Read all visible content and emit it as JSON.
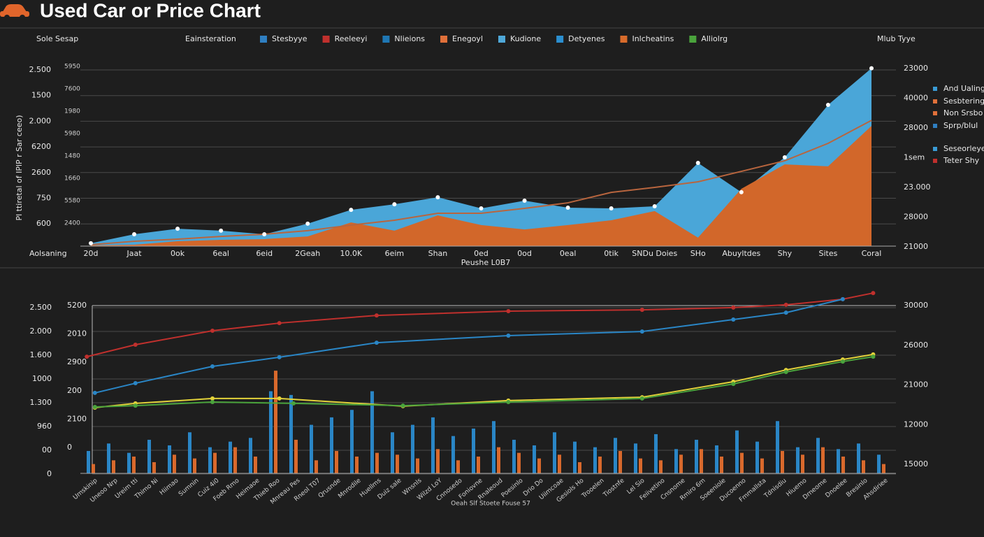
{
  "header": {
    "title": "Used Car or Price Chart"
  },
  "chart_data": [
    {
      "type": "area",
      "top_left_label": "Sole Sesap",
      "legend_title": "Eainsteration",
      "right_title": "Mlub Tyye",
      "y_title": "Pl ttiretal of IPlP r Sar ceeo)",
      "x_title": "Peushe L0B7",
      "x_corner_label": "Aolsaning",
      "legend": [
        {
          "name": "Stesbyye",
          "color": "#2f7fc1"
        },
        {
          "name": "Reeleeyi",
          "color": "#c0302d"
        },
        {
          "name": "Nlieions",
          "color": "#1f77b4"
        },
        {
          "name": "Enegoyl",
          "color": "#e0703a"
        },
        {
          "name": "Kudione",
          "color": "#4fa8d8"
        },
        {
          "name": "Detyenes",
          "color": "#2b8fd0"
        },
        {
          "name": "Inlcheatins",
          "color": "#d86b2b"
        },
        {
          "name": "Alliolrg",
          "color": "#4aa33c"
        }
      ],
      "right_legend": [
        {
          "name": "And Ualing",
          "color": "#3a9bd5"
        },
        {
          "name": "Sesbtering",
          "color": "#e0703a"
        },
        {
          "name": "Non Srsbo",
          "color": "#e0703a"
        },
        {
          "name": "Sprp/blul",
          "color": "#2f7fc1"
        },
        {
          "name": "Seseorleye",
          "color": "#3a9bd5"
        },
        {
          "name": "Teter Shy",
          "color": "#c0302d"
        }
      ],
      "y_labels": [
        "2.500",
        "1500",
        "2.000",
        "6200",
        "2600",
        "750",
        "600"
      ],
      "inner_labels": [
        "5950",
        "7600",
        "1980",
        "5980",
        "1480",
        "1660",
        "5580",
        "2400"
      ],
      "right_labels": [
        "23000",
        "40000",
        "28000",
        "1sem",
        "23.000",
        "28000",
        "21000"
      ],
      "categories": [
        "20d",
        "Jaat",
        "0ok",
        "6eal",
        "6eid",
        "2Geah",
        "10.0K",
        "6eim",
        "Shan",
        "0ed",
        "0od",
        "0eal",
        "0tik",
        "SNDu Doies",
        "SHo",
        "Abuyltdes",
        "Shy",
        "Sites",
        "Coral"
      ],
      "ylim": [
        0,
        100
      ],
      "series": [
        {
          "color": "#4aa6d8",
          "values": [
            1.6,
            6.6,
            9.7,
            8.6,
            6.6,
            12.5,
            20.2,
            23.3,
            27.2,
            21,
            25.3,
            21.4,
            21,
            22.2,
            46.3,
            30,
            49.4,
            78.6,
            99
          ]
        },
        {
          "color": "#d2672a",
          "values": [
            0.4,
            0.8,
            2.7,
            3.5,
            3.9,
            5.4,
            13.2,
            8.6,
            17.1,
            11.7,
            9.3,
            11.7,
            14.4,
            19.5,
            4.7,
            31.9,
            45.5,
            44.4,
            66.9
          ]
        },
        {
          "type": "line",
          "color": "#b8653e",
          "values": [
            0.8,
            2.7,
            3.9,
            5.4,
            6.6,
            8.6,
            11.7,
            14.4,
            18.3,
            18.3,
            21,
            24.1,
            29.9,
            32.7,
            35.8,
            41.6,
            47.5,
            57.2,
            70
          ]
        }
      ]
    },
    {
      "type": "bar",
      "x_title": "Oeah Slf Stoete Fouse 57",
      "y_labels": [
        "2.500",
        "2.000",
        "1.600",
        "1000",
        "1.300",
        "960",
        "00",
        "0"
      ],
      "inner_labels": [
        "5200",
        "2010",
        "2900",
        "200",
        "2100",
        "0"
      ],
      "right_labels": [
        "30000",
        "26000",
        "21000",
        "12000",
        "15000"
      ],
      "categories": [
        "Umskinip",
        "Uneoo Nrp",
        "Ureim tti",
        "Thimo Ni",
        "Hiimao",
        "Sumnin",
        "Cuiz 4i0",
        "Foeb Rmo",
        "Heimaoe",
        "Thieb Roo",
        "Mnreau Pes",
        "Rneol T07",
        "Qrusnde",
        "Mnrodile",
        "Huellms",
        "Duiz sale",
        "Wnsnls",
        "Wilzd LoY",
        "Cnnosedo",
        "Foniovne",
        "Rnaleoud",
        "Poesinlo",
        "Drio Do",
        "Uiimcoae",
        "Gesiols Ho",
        "Trooelen",
        "Tiostnfe",
        "Lel Sio",
        "Feiivetino",
        "Cnsnome",
        "Rmiro 6m",
        "Soeeniole",
        "Ducoenno",
        "Fmmallsta",
        "Tdnisdiu",
        "Hiuemo",
        "Drneome",
        "Dnoelee",
        "Bresinlo",
        "Ahsdiriee"
      ],
      "xlim": [
        -0.5,
        39.5
      ],
      "ylim": [
        0,
        100
      ],
      "series": [
        {
          "color": "#2a86c6",
          "values": [
            12,
            16,
            11,
            18,
            15,
            22,
            14,
            17,
            19,
            44,
            42,
            26,
            30,
            34,
            44,
            22,
            26,
            30,
            20,
            24,
            28,
            18,
            15,
            22,
            17,
            14,
            19,
            16,
            21,
            13,
            18,
            15,
            23,
            17,
            28,
            14,
            19,
            13,
            16,
            10
          ]
        },
        {
          "color": "#d9692c",
          "values": [
            5,
            7,
            9,
            6,
            10,
            8,
            11,
            14,
            9,
            55,
            18,
            7,
            12,
            9,
            11,
            10,
            8,
            13,
            7,
            9,
            14,
            11,
            8,
            10,
            6,
            9,
            12,
            8,
            7,
            10,
            13,
            9,
            11,
            8,
            12,
            10,
            14,
            9,
            7,
            5
          ]
        }
      ],
      "lines": [
        {
          "color": "#c0302d",
          "x": [
            -0.2,
            2.2,
            6,
            9.3,
            14.1,
            20.6,
            27.2,
            31.7,
            34.3,
            37.1,
            38.6
          ],
          "values": [
            62.5,
            68.9,
            76.4,
            80.5,
            84.6,
            86.9,
            87.6,
            88.8,
            90.3,
            93.3,
            96.6
          ]
        },
        {
          "color": "#2a86c6",
          "x": [
            0.2,
            2.2,
            6,
            9.3,
            14.1,
            20.6,
            27.2,
            31.7,
            34.3,
            37.1
          ],
          "values": [
            43.1,
            48.3,
            57.3,
            62.2,
            70,
            73.8,
            76,
            82.4,
            86.1,
            93.3
          ]
        },
        {
          "color": "#e2d23a",
          "x": [
            0.2,
            2.2,
            6,
            9.3,
            15.4,
            20.6,
            27.2,
            31.7,
            34.3,
            37.1,
            38.6
          ],
          "values": [
            35.2,
            37.5,
            40.1,
            40.1,
            36,
            39,
            40.8,
            49.1,
            55.4,
            61,
            63.7
          ]
        },
        {
          "color": "#4aa33c",
          "x": [
            0.2,
            2.2,
            6,
            10,
            15.4,
            20.6,
            27.2,
            31.7,
            34.3,
            37.1,
            38.6
          ],
          "values": [
            35.6,
            36.3,
            38.2,
            37.5,
            36.3,
            38.2,
            40.1,
            47.9,
            54.3,
            59.9,
            62.5
          ]
        }
      ]
    }
  ]
}
